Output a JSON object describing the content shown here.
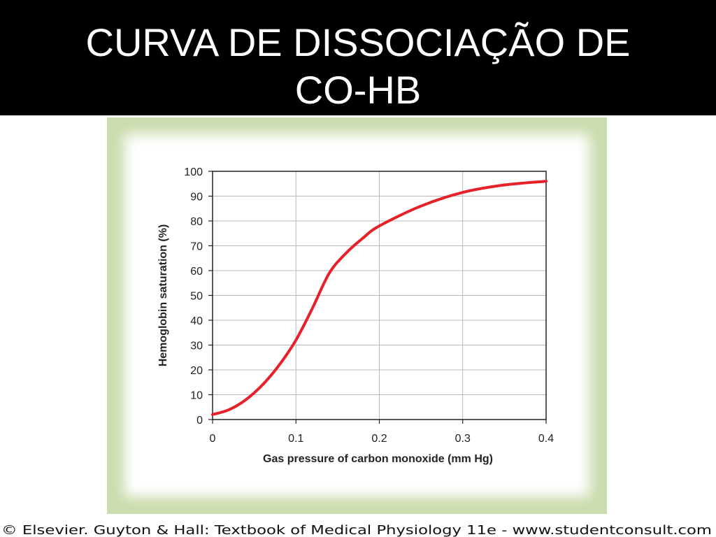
{
  "chart_data": {
    "type": "line",
    "title_lines": [
      "CURVA DE DISSOCIAÇÃO DE",
      "CO-HB"
    ],
    "xlabel": "Gas pressure of carbon monoxide (mm Hg)",
    "ylabel": "Hemoglobin saturation (%)",
    "x": [
      0,
      0.02,
      0.04,
      0.06,
      0.08,
      0.1,
      0.12,
      0.14,
      0.16,
      0.18,
      0.2,
      0.25,
      0.3,
      0.35,
      0.4
    ],
    "values": [
      2,
      4,
      8,
      14,
      22,
      32,
      45,
      59,
      67,
      73,
      78,
      86,
      91.5,
      94.5,
      96
    ],
    "color": "#e8202a",
    "xlim": [
      0,
      0.4
    ],
    "xticks": [
      0,
      0.1,
      0.2,
      0.3,
      0.4
    ],
    "ylim": [
      0,
      100
    ],
    "yticks": [
      0,
      10,
      20,
      30,
      40,
      50,
      60,
      70,
      80,
      90,
      100
    ],
    "grid": true,
    "credit": "© Elsevier. Guyton & Hall: Textbook of Medical Physiology 11e - www.studentconsult.com"
  }
}
